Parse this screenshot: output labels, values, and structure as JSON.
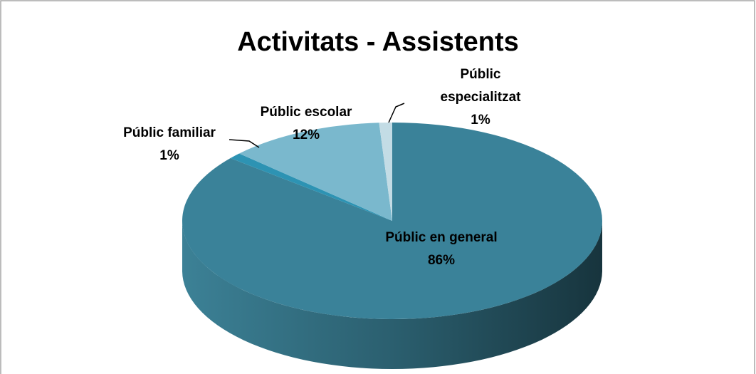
{
  "chart_data": {
    "type": "pie",
    "title": "Activitats - Assistents",
    "categories": [
      "Públic en general",
      "Públic familiar",
      "Públic escolar",
      "Públic especialitzat"
    ],
    "values": [
      86,
      1,
      12,
      1
    ],
    "value_labels": [
      "86%",
      "1%",
      "12%",
      "1%"
    ],
    "colors": [
      "#3a8299",
      "#2d93b3",
      "#7ab8cd",
      "#c3dce5"
    ]
  }
}
